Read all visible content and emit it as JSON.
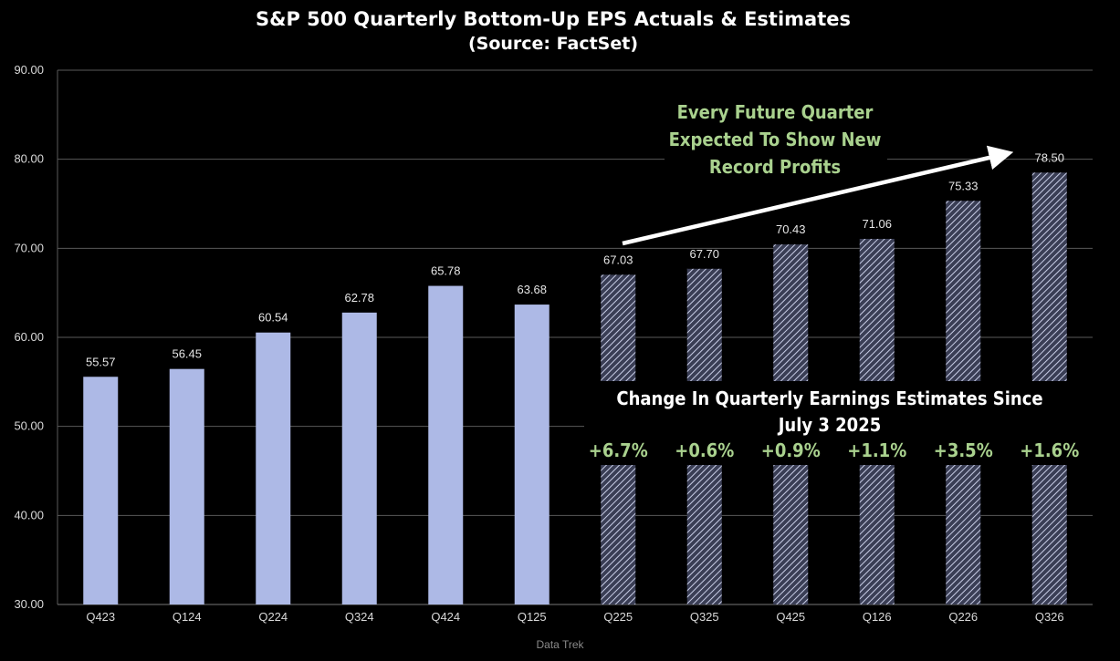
{
  "chart_data": {
    "type": "bar",
    "title": "S&P 500 Quarterly Bottom-Up EPS Actuals & Estimates",
    "subtitle": "(Source: FactSet)",
    "categories": [
      "Q423",
      "Q124",
      "Q224",
      "Q324",
      "Q424",
      "Q125",
      "Q225",
      "Q325",
      "Q425",
      "Q126",
      "Q226",
      "Q326"
    ],
    "series": [
      {
        "values": [
          55.57,
          56.45,
          60.54,
          62.78,
          65.78,
          63.68,
          67.03,
          67.7,
          70.43,
          71.06,
          75.33,
          78.5
        ],
        "labels": [
          "55.57",
          "56.45",
          "60.54",
          "62.78",
          "65.78",
          "63.68",
          "67.03",
          "67.70",
          "70.43",
          "71.06",
          "75.33",
          "78.50"
        ],
        "kinds": [
          "actual",
          "actual",
          "actual",
          "actual",
          "actual",
          "actual",
          "estimate",
          "estimate",
          "estimate",
          "estimate",
          "estimate",
          "estimate"
        ]
      }
    ],
    "yticks": [
      "30.00",
      "40.00",
      "50.00",
      "60.00",
      "70.00",
      "80.00",
      "90.00"
    ],
    "ylim": [
      30,
      90
    ],
    "grid": true,
    "legend": "none",
    "colors": {
      "actual": "#adb9e6",
      "estimate_stripe": "#c8cde6",
      "estimate_bg": "#3a3e55",
      "note_green": "#a9d18e",
      "grid": "#5a5a5a"
    },
    "annotations": {
      "arrow_note": [
        "Every Future Quarter",
        "Expected To Show New",
        "Record Profits"
      ],
      "change_title": [
        "Change In Quarterly Earnings Estimates Since",
        "July 3 2025"
      ],
      "changes": [
        "+6.7%",
        "+0.6%",
        "+0.9%",
        "+1.1%",
        "+3.5%",
        "+1.6%"
      ]
    }
  },
  "credit": "Data Trek"
}
